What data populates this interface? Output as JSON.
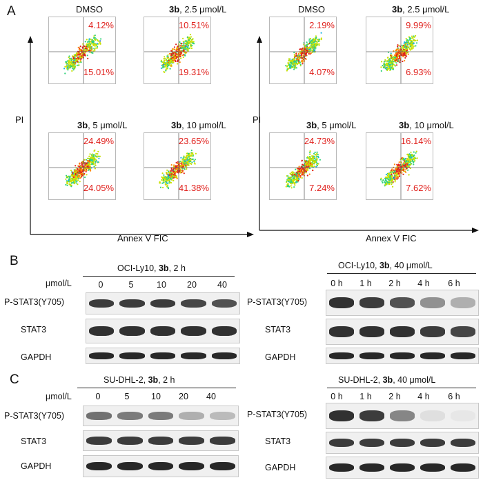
{
  "figure": {
    "panel_a": {
      "letter": "A",
      "groups": [
        {
          "y_axis": "PI",
          "x_axis": "Annex V FIC",
          "plots": [
            {
              "title_bold": "",
              "title_rest": "DMSO",
              "upper_right": "4.12%",
              "lower_right": "15.01%"
            },
            {
              "title_bold": "3b",
              "title_rest": ", 2.5 μmol/L",
              "upper_right": "10.51%",
              "lower_right": "19.31%"
            },
            {
              "title_bold": "3b",
              "title_rest": ", 5 μmol/L",
              "upper_right": "24.49%",
              "lower_right": "24.05%"
            },
            {
              "title_bold": "3b",
              "title_rest": ", 10 μmol/L",
              "upper_right": "23.65%",
              "lower_right": "41.38%"
            }
          ]
        },
        {
          "y_axis": "PI",
          "x_axis": "Annex V FIC",
          "plots": [
            {
              "title_bold": "",
              "title_rest": "DMSO",
              "upper_right": "2.19%",
              "lower_right": "4.07%"
            },
            {
              "title_bold": "3b",
              "title_rest": ", 2.5 μmol/L",
              "upper_right": "9.99%",
              "lower_right": "6.93%"
            },
            {
              "title_bold": "3b",
              "title_rest": ", 5 μmol/L",
              "upper_right": "24.73%",
              "lower_right": "7.24%"
            },
            {
              "title_bold": "3b",
              "title_rest": ", 10 μmol/L",
              "upper_right": "16.14%",
              "lower_right": "7.62%"
            }
          ]
        }
      ]
    },
    "panel_b": {
      "letter": "B",
      "left": {
        "title_pre": "OCI-Ly10, ",
        "title_bold": "3b",
        "title_post": ", 2 h",
        "unit": "μmol/L",
        "lanes": [
          "0",
          "5",
          "10",
          "20",
          "40"
        ],
        "rows": [
          "P-STAT3(Y705)",
          "STAT3",
          "GAPDH"
        ],
        "intensity": [
          [
            0.85,
            0.85,
            0.85,
            0.8,
            0.75
          ],
          [
            0.9,
            0.9,
            0.9,
            0.9,
            0.9
          ],
          [
            0.95,
            0.95,
            0.95,
            0.95,
            0.95
          ]
        ]
      },
      "right": {
        "title_pre": "OCI-Ly10, ",
        "title_bold": "3b",
        "title_post": ", 40 μmol/L",
        "lanes": [
          "0 h",
          "1 h",
          "2 h",
          "4 h",
          "6 h"
        ],
        "rows": [
          "P-STAT3(Y705)",
          "STAT3",
          "GAPDH"
        ],
        "intensity": [
          [
            0.9,
            0.85,
            0.75,
            0.45,
            0.3
          ],
          [
            0.9,
            0.9,
            0.9,
            0.85,
            0.8
          ],
          [
            0.95,
            0.95,
            0.95,
            0.95,
            0.95
          ]
        ]
      }
    },
    "panel_c": {
      "letter": "C",
      "left": {
        "title_pre": "SU-DHL-2, ",
        "title_bold": "3b",
        "title_post": ", 2 h",
        "unit": "μmol/L",
        "lanes": [
          "0",
          "5",
          "10",
          "20",
          "40"
        ],
        "rows": [
          "P-STAT3(Y705)",
          "STAT3",
          "GAPDH"
        ],
        "intensity": [
          [
            0.6,
            0.55,
            0.55,
            0.3,
            0.25
          ],
          [
            0.85,
            0.85,
            0.85,
            0.85,
            0.85
          ],
          [
            0.95,
            0.95,
            0.95,
            0.95,
            0.95
          ]
        ]
      },
      "right": {
        "title_pre": "SU-DHL-2, ",
        "title_bold": "3b",
        "title_post": ", 40 μmol/L",
        "lanes": [
          "0 h",
          "1 h",
          "2 h",
          "4 h",
          "6 h"
        ],
        "rows": [
          "P-STAT3(Y705)",
          "STAT3",
          "GAPDH"
        ],
        "intensity": [
          [
            0.9,
            0.85,
            0.5,
            0.08,
            0.04
          ],
          [
            0.85,
            0.85,
            0.85,
            0.85,
            0.85
          ],
          [
            0.95,
            0.95,
            0.95,
            0.95,
            0.95
          ]
        ]
      }
    },
    "colors": {
      "percent": "#e0201c",
      "axis": "#111111",
      "band": "#1c1c1c"
    }
  }
}
